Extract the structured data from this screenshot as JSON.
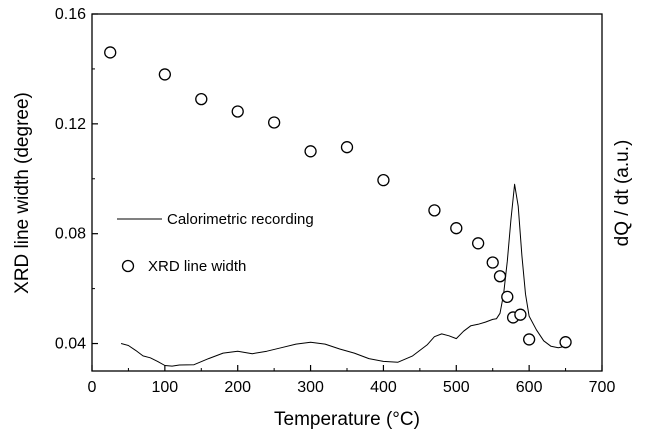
{
  "chart_data": {
    "type": "scatter",
    "xlabel": "Temperature (°C)",
    "ylabel": "XRD line width (degree)",
    "y2label": "dQ / dt (a.u.)",
    "xlim": [
      0,
      700
    ],
    "ylim": [
      0.03,
      0.16
    ],
    "xticks": [
      0,
      100,
      200,
      300,
      400,
      500,
      600,
      700
    ],
    "yticks": [
      0.04,
      0.08,
      0.12,
      0.16
    ],
    "grid": false,
    "legend": "left-middle",
    "series": [
      {
        "name": "Calorimetric recording",
        "type": "line",
        "color": "#000000",
        "x": [
          40,
          50,
          60,
          70,
          80,
          90,
          100,
          110,
          120,
          140,
          160,
          180,
          200,
          220,
          240,
          260,
          280,
          300,
          320,
          340,
          360,
          380,
          400,
          420,
          440,
          460,
          470,
          480,
          490,
          500,
          510,
          520,
          530,
          540,
          550,
          555,
          560,
          565,
          570,
          575,
          580,
          585,
          590,
          595,
          600,
          610,
          620,
          630,
          640,
          650
        ],
        "values": [
          0.04,
          0.0393,
          0.0375,
          0.0355,
          0.0348,
          0.0335,
          0.032,
          0.0318,
          0.0322,
          0.0323,
          0.0345,
          0.0365,
          0.0372,
          0.0363,
          0.0372,
          0.0385,
          0.0398,
          0.0405,
          0.0398,
          0.038,
          0.0365,
          0.0345,
          0.0335,
          0.0332,
          0.0355,
          0.0395,
          0.0425,
          0.0435,
          0.0428,
          0.0418,
          0.0445,
          0.0465,
          0.047,
          0.0478,
          0.0488,
          0.049,
          0.051,
          0.058,
          0.07,
          0.085,
          0.098,
          0.09,
          0.072,
          0.058,
          0.05,
          0.045,
          0.041,
          0.039,
          0.0385,
          0.039
        ]
      },
      {
        "name": "XRD line width",
        "type": "scatter",
        "marker": "open-circle",
        "x": [
          25,
          100,
          150,
          200,
          250,
          300,
          350,
          400,
          470,
          500,
          530,
          550,
          560,
          570,
          578,
          588,
          600,
          650
        ],
        "values": [
          0.146,
          0.138,
          0.129,
          0.1245,
          0.1205,
          0.11,
          0.1115,
          0.0995,
          0.0885,
          0.082,
          0.0765,
          0.0695,
          0.0645,
          0.057,
          0.0495,
          0.0505,
          0.0415,
          0.0405
        ]
      }
    ]
  }
}
